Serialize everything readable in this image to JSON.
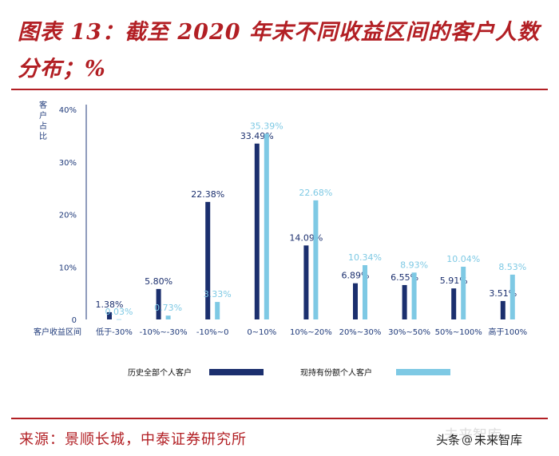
{
  "header": {
    "title": "图表 13：截至 2020 年末不同收益区间的客户人数分布；%"
  },
  "footer": {
    "source": "来源：景顺长城，中泰证券研究所",
    "watermark": "未来智库",
    "credit_prefix": "头条",
    "credit_name": "未来智库",
    "credit_icon": "at-icon"
  },
  "colors": {
    "brand_red": "#b21f24",
    "series_dark": "#1b2f6e",
    "series_light": "#7ec9e4",
    "axis": "#1f3a7a"
  },
  "chart_data": {
    "type": "bar",
    "title": "",
    "ylabel": "客户占比",
    "xlabel": "客户收益区间",
    "ylim": [
      0,
      40
    ],
    "yticks": [
      "0",
      "10%",
      "20%",
      "30%",
      "40%"
    ],
    "ytick_values": [
      0,
      10,
      20,
      30,
      40
    ],
    "categories": [
      "低于-30%",
      "-10%~-30%",
      "-10%~0",
      "0~10%",
      "10%~20%",
      "20%~30%",
      "30%~50%",
      "50%~100%",
      "高于100%"
    ],
    "series": [
      {
        "name": "历史全部个人客户",
        "values": [
          1.38,
          5.8,
          22.38,
          33.49,
          14.09,
          6.89,
          6.55,
          5.91,
          3.51
        ],
        "labels": [
          "1.38%",
          "5.80%",
          "22.38%",
          "33.49%",
          "14.09%",
          "6.89%",
          "6.55%",
          "5.91%",
          "3.51%"
        ]
      },
      {
        "name": "现持有份额个人客户",
        "values": [
          0.03,
          0.73,
          3.33,
          35.39,
          22.68,
          10.34,
          8.93,
          10.04,
          8.53
        ],
        "labels": [
          "0.03%",
          "0.73%",
          "3.33%",
          "35.39%",
          "22.68%",
          "10.34%",
          "8.93%",
          "10.04%",
          "8.53%"
        ]
      }
    ],
    "legend_position": "bottom"
  }
}
